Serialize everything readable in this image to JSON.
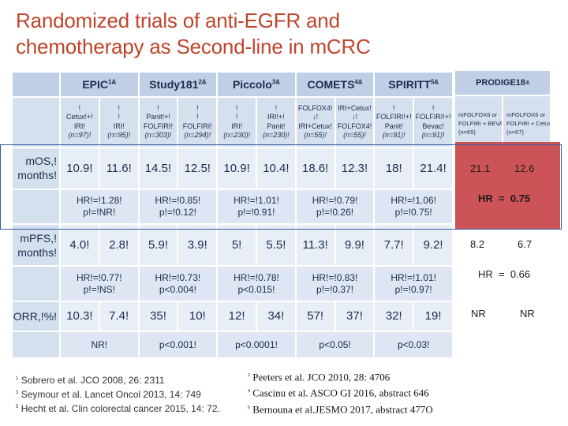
{
  "title_line1": "Randomized trials of anti-EGFR and",
  "title_line2": "chemotherapy as Second-line in mCRC",
  "trials": [
    {
      "name": "EPIC",
      "sup": "1&"
    },
    {
      "name": "Study181",
      "sup": "2&"
    },
    {
      "name": "Piccolo",
      "sup": "3&"
    },
    {
      "name": "COMETS",
      "sup": "4&"
    },
    {
      "name": "SPIRITT",
      "sup": "5&"
    }
  ],
  "arms": [
    {
      "line1": "!",
      "line2": "Cetux!+!",
      "line3": "IRI!",
      "n": "(n=97)!"
    },
    {
      "line1": "!",
      "line2": "!",
      "line3": "IRI!",
      "n": "(n=95)!"
    },
    {
      "line1": "!",
      "line2": "Panit!+!",
      "line3": "FOLFIRI!",
      "n": "(n=303)!"
    },
    {
      "line1": "!",
      "line2": "!",
      "line3": "FOLFIRI!",
      "n": "(n=294)!"
    },
    {
      "line1": "!",
      "line2": "!",
      "line3": "IRI!",
      "n": "(n=230)!"
    },
    {
      "line1": "!",
      "line2": "IRI!+!",
      "line3": "Panit!",
      "n": "(n=230)!"
    },
    {
      "line1": "FOLFOX4!",
      "line2": "↓!",
      "line3": "IRI+Cetux!",
      "n": "(n=55)!"
    },
    {
      "line1": "IRI+Cetux!",
      "line2": "↓!",
      "line3": "FOLFOX4!",
      "n": "(n=55)!"
    },
    {
      "line1": "!",
      "line2": "FOLFIRI!+!",
      "line3": "Panit!",
      "n": "(n=91)!"
    },
    {
      "line1": "!",
      "line2": "FOLFIRI!+!",
      "line3": "Bevac!",
      "n": "(n=91)!"
    }
  ],
  "os": {
    "label_line1": "mOS,!",
    "label_line2": "months!",
    "values": [
      "10.9!",
      "11.6!",
      "14.5!",
      "12.5!",
      "10.9!",
      "10.4!",
      "18.6!",
      "12.3!",
      "18!",
      "21.4!"
    ],
    "stats": [
      {
        "hr": "HR!=!1.28!",
        "p": "p!=!NR!"
      },
      {
        "hr": "HR!=!0.85!",
        "p": "p!=!0.12!"
      },
      {
        "hr": "HR!=!1.01!",
        "p": "p!=!0.91!"
      },
      {
        "hr": "HR!=!0.79!",
        "p": "p!=!0.26!"
      },
      {
        "hr": "HR!=!1.06!",
        "p": "p!=!0.75!"
      }
    ]
  },
  "pfs": {
    "label_line1": "mPFS,!",
    "label_line2": "months!",
    "values": [
      "4.0!",
      "2.8!",
      "5.9!",
      "3.9!",
      "5!",
      "5.5!",
      "11.3!",
      "9.9!",
      "7.7!",
      "9.2!"
    ],
    "stats": [
      {
        "hr": "HR!=!0.77!",
        "p": "p!=!NS!"
      },
      {
        "hr": "HR!=!0.73!",
        "p": "p<0.004!"
      },
      {
        "hr": "HR!=!0.78!",
        "p": "p<0.015!"
      },
      {
        "hr": "HR!=!0.83!",
        "p": "p!=!0.37!"
      },
      {
        "hr": "HR!=!1.01!",
        "p": "p!=!0.97!"
      }
    ]
  },
  "orr": {
    "label": "ORR,!%!",
    "values": [
      "10.3!",
      "7.4!",
      "35!",
      "10!",
      "12!",
      "34!",
      "57!",
      "37!",
      "32!",
      "19!"
    ],
    "pvalues": [
      "NR!",
      "p<0.001!",
      "p<0.0001!",
      "p<0.05!",
      "p<0.03!"
    ]
  },
  "prodige": {
    "name": "PRODIGE18",
    "sup": "6",
    "arm1_line1": "mFOLFOX6 or",
    "arm1_line2": "FOLFIRI + BEVA",
    "arm1_n": "(n=65)",
    "arm2_line1": "mFOLFOX6 or",
    "arm2_line2": "FOLFIRI + Cetux",
    "arm2_n": "(n=67)",
    "os1": "21.1",
    "os2": "12.6",
    "os_hr": "HR  =  0.75",
    "pfs1": "8.2",
    "pfs2": "6.7",
    "pfs_hr": "HR  =  0.66",
    "orr1": "NR",
    "orr2": "NR"
  },
  "refs_left": [
    {
      "sup": "1",
      "text": "Sobrero et al.  JCO 2008, 26: 2311"
    },
    {
      "sup": "3",
      "text": "Seymour et al. Lancet Oncol 2013, 14: 749"
    },
    {
      "sup": "5",
      "text": "Hecht et al. Clin colorectal  cancer 2015, 14: 72."
    }
  ],
  "refs_right": [
    {
      "sup": "2",
      "text": "Peeters et al. JCO 2010, 28: 4706"
    },
    {
      "sup": "4",
      "text": "Cascinu et al. ASCO GI 2016, abstract 646"
    },
    {
      "sup": "6",
      "text": "Bernouna et al.JESMO 2017, abstract 477O"
    }
  ]
}
